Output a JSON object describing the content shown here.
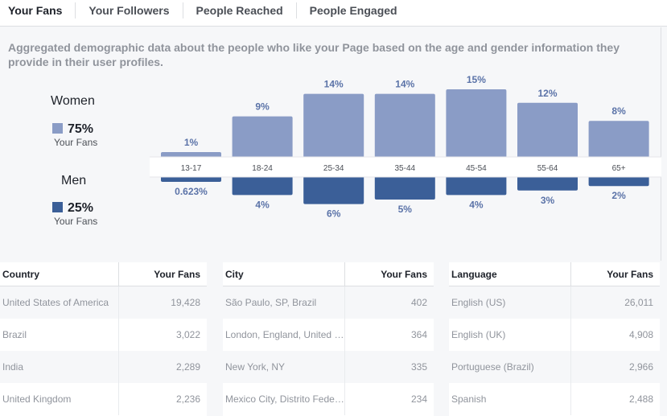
{
  "tabs": [
    "Your Fans",
    "Your Followers",
    "People Reached",
    "People Engaged"
  ],
  "description": "Aggregated demographic data about the people who like your Page based on the age and gender information they provide in their user profiles.",
  "women": {
    "label": "Women",
    "percent": "75%",
    "sub": "Your Fans",
    "color": "#8a9cc6"
  },
  "men": {
    "label": "Men",
    "percent": "25%",
    "sub": "Your Fans",
    "color": "#3b5f98"
  },
  "chart_data": {
    "type": "bar",
    "categories": [
      "13-17",
      "18-24",
      "25-34",
      "35-44",
      "45-54",
      "55-64",
      "65+"
    ],
    "series": [
      {
        "name": "Women",
        "values": [
          1,
          9,
          14,
          14,
          15,
          12,
          8
        ],
        "labels": [
          "1%",
          "9%",
          "14%",
          "14%",
          "15%",
          "12%",
          "8%"
        ]
      },
      {
        "name": "Men",
        "values": [
          0.623,
          4,
          6,
          5,
          4,
          3,
          2
        ],
        "labels": [
          "0.623%",
          "4%",
          "6%",
          "5%",
          "4%",
          "3%",
          "2%"
        ]
      }
    ]
  },
  "tables": [
    {
      "header": [
        "Country",
        "Your Fans"
      ],
      "rows": [
        [
          "United States of America",
          "19,428"
        ],
        [
          "Brazil",
          "3,022"
        ],
        [
          "India",
          "2,289"
        ],
        [
          "United Kingdom",
          "2,236"
        ]
      ]
    },
    {
      "header": [
        "City",
        "Your Fans"
      ],
      "rows": [
        [
          "São Paulo, SP, Brazil",
          "402"
        ],
        [
          "London, England, United Kingdom",
          "364"
        ],
        [
          "New York, NY",
          "335"
        ],
        [
          "Mexico City, Distrito Federal, Mexico",
          "234"
        ]
      ]
    },
    {
      "header": [
        "Language",
        "Your Fans"
      ],
      "rows": [
        [
          "English (US)",
          "26,011"
        ],
        [
          "English (UK)",
          "4,908"
        ],
        [
          "Portuguese (Brazil)",
          "2,966"
        ],
        [
          "Spanish",
          "2,488"
        ]
      ]
    }
  ]
}
